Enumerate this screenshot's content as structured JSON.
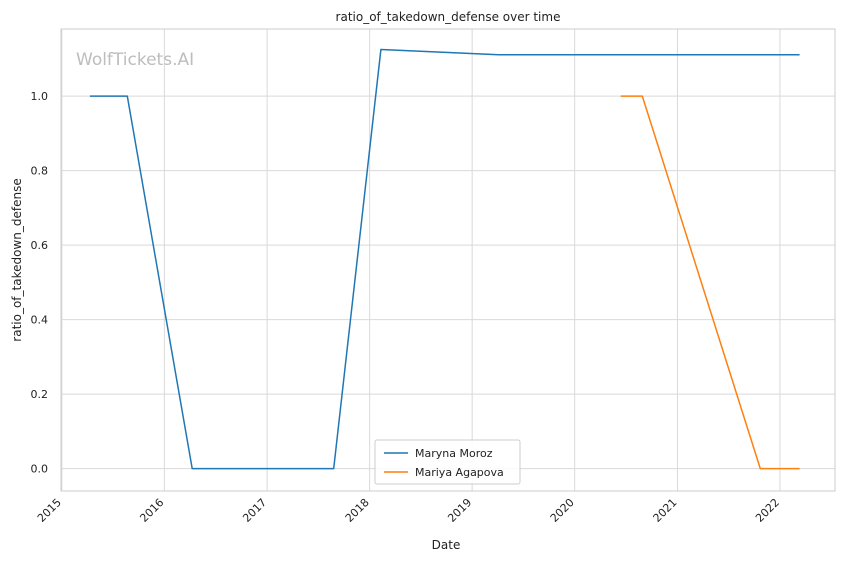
{
  "chart_data": {
    "type": "line",
    "title": "ratio_of_takedown_defense over time",
    "xlabel": "Date",
    "ylabel": "ratio_of_takedown_defense",
    "watermark": "WolfTickets.AI",
    "x_ticks": [
      "2015",
      "2016",
      "2017",
      "2018",
      "2019",
      "2020",
      "2021",
      "2022"
    ],
    "y_ticks": [
      "0.0",
      "0.2",
      "0.4",
      "0.6",
      "0.8",
      "1.0"
    ],
    "xlim": [
      "2014-12-29",
      "2022-07-16"
    ],
    "ylim": [
      -0.06,
      1.18
    ],
    "grid": true,
    "legend_position": "bottom-center",
    "series": [
      {
        "name": "Maryna Moroz",
        "color": "#1f77b4",
        "points": [
          {
            "x": "2015-04-11",
            "y": 1.0
          },
          {
            "x": "2015-08-22",
            "y": 1.0
          },
          {
            "x": "2016-04-09",
            "y": 0.0
          },
          {
            "x": "2017-08-26",
            "y": 0.0
          },
          {
            "x": "2018-02-10",
            "y": 1.125
          },
          {
            "x": "2019-04-06",
            "y": 1.111
          },
          {
            "x": "2022-03-12",
            "y": 1.111
          }
        ]
      },
      {
        "name": "Mariya Agapova",
        "color": "#ff7f0e",
        "points": [
          {
            "x": "2020-06-13",
            "y": 1.0
          },
          {
            "x": "2020-08-29",
            "y": 1.0
          },
          {
            "x": "2021-10-23",
            "y": 0.0
          },
          {
            "x": "2022-03-12",
            "y": 0.0
          }
        ]
      }
    ]
  }
}
